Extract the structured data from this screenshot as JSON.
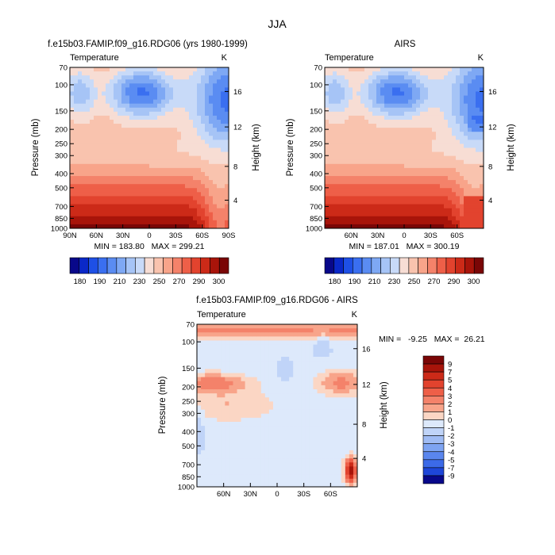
{
  "figure": {
    "title": "JJA"
  },
  "chart_data": [
    {
      "type": "heatmap",
      "title": "f.e15b03.FAMIP.f09_g16.RDG06 (yrs 1980-1999)",
      "subtitle_left": "Temperature",
      "subtitle_right": "K",
      "ylabel": "Pressure (mb)",
      "y2label": "Height (km)",
      "xticks": [
        "90N",
        "60N",
        "30N",
        "0",
        "30S",
        "60S",
        "90S"
      ],
      "yticks": [
        "70",
        "100",
        "150",
        "200",
        "250",
        "300",
        "400",
        "500",
        "700",
        "850",
        "1000"
      ],
      "y2ticks": [
        "16",
        "12",
        "8",
        "4"
      ],
      "stats": "MIN = 183.80   MAX = 299.21",
      "colorbar": {
        "orientation": "horizontal",
        "labels": [
          "180",
          "190",
          "210",
          "230",
          "250",
          "270",
          "290",
          "300"
        ]
      }
    },
    {
      "type": "heatmap",
      "title": "AIRS",
      "subtitle_left": "Temperature",
      "subtitle_right": "K",
      "ylabel": "Pressure (mb)",
      "y2label": "Height (km)",
      "xticks": [
        "60N",
        "30N",
        "0",
        "30S",
        "60S"
      ],
      "yticks": [
        "70",
        "100",
        "150",
        "200",
        "250",
        "300",
        "400",
        "500",
        "700",
        "850",
        "1000"
      ],
      "y2ticks": [
        "16",
        "12",
        "8",
        "4"
      ],
      "stats": "MIN = 187.01   MAX = 300.19",
      "colorbar": {
        "orientation": "horizontal",
        "labels": [
          "180",
          "190",
          "210",
          "230",
          "250",
          "270",
          "290",
          "300"
        ]
      }
    },
    {
      "type": "heatmap",
      "title": "f.e15b03.FAMIP.f09_g16.RDG06 - AIRS",
      "subtitle_left": "Temperature",
      "subtitle_right": "K",
      "ylabel": "Pressure (mb)",
      "y2label": "Height (km)",
      "xticks": [
        "60N",
        "30N",
        "0",
        "30S",
        "60S"
      ],
      "yticks": [
        "70",
        "100",
        "150",
        "200",
        "250",
        "300",
        "400",
        "500",
        "700",
        "850",
        "1000"
      ],
      "y2ticks": [
        "16",
        "12",
        "8",
        "4"
      ],
      "stats": "MIN =   -9.25   MAX =  26.21",
      "colorbar": {
        "orientation": "vertical",
        "labels": [
          "9",
          "7",
          "5",
          "4",
          "3",
          "2",
          "1",
          "0",
          "-1",
          "-2",
          "-3",
          "-4",
          "-5",
          "-7",
          "-9"
        ]
      }
    }
  ],
  "colors": {
    "abs": [
      "#08088a",
      "#0a28c8",
      "#1e50e6",
      "#3a6ff0",
      "#5a8cf2",
      "#7ea8f4",
      "#a6c4f6",
      "#c8daf8",
      "#f7ddd4",
      "#f9c3ae",
      "#f8a48a",
      "#f4826a",
      "#ee5f48",
      "#e2432e",
      "#cc2a18",
      "#a8140a",
      "#7a0606"
    ],
    "diff": [
      "#7a0606",
      "#a8140a",
      "#cc2a18",
      "#e2432e",
      "#ee5f48",
      "#f4826a",
      "#f8a48a",
      "#fbd6c4",
      "#dde9fb",
      "#c0d4f8",
      "#a0bcf4",
      "#7ea4f2",
      "#5a86ee",
      "#3c6ae8",
      "#1e46d8",
      "#08088a"
    ]
  }
}
